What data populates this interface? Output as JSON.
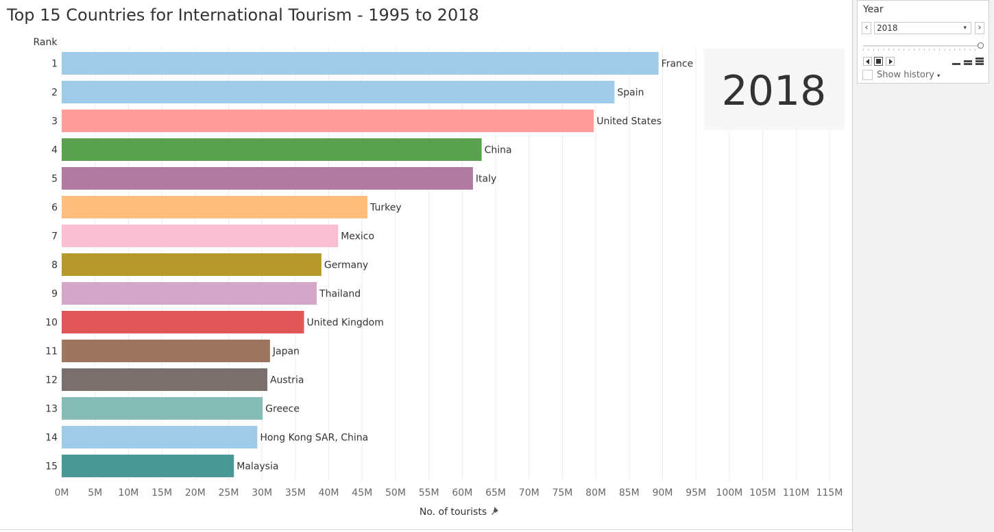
{
  "title": "Top 15 Countries for International Tourism - 1995 to 2018",
  "year_badge": "2018",
  "controls": {
    "year_label": "Year",
    "year_value": "2018",
    "prev_glyph": "‹",
    "next_glyph": "›",
    "dropdown_caret": "▾",
    "show_history_label": "Show history",
    "show_history_checked": false,
    "slider_position": 1.0,
    "icons": [
      "chevron-left-icon",
      "chevron-right-icon",
      "play-back-icon",
      "stop-icon",
      "play-forward-icon",
      "speed-slow-icon",
      "speed-medium-icon",
      "speed-fast-icon",
      "pin-icon"
    ]
  },
  "chart_data": {
    "type": "bar",
    "orientation": "horizontal",
    "title": "Top 15 Countries for International Tourism - 1995 to 2018",
    "xlabel": "No. of tourists",
    "ylabel": "Rank",
    "xlim": [
      0,
      115000000
    ],
    "x_ticks": [
      "0M",
      "5M",
      "10M",
      "15M",
      "20M",
      "25M",
      "30M",
      "35M",
      "40M",
      "45M",
      "50M",
      "55M",
      "60M",
      "65M",
      "70M",
      "75M",
      "80M",
      "85M",
      "90M",
      "95M",
      "100M",
      "105M",
      "110M",
      "115M"
    ],
    "grid": "vertical",
    "bars": [
      {
        "rank": "1",
        "label": "France",
        "value": 89400000,
        "color": "#a0cbe8"
      },
      {
        "rank": "2",
        "label": "Spain",
        "value": 82800000,
        "color": "#a0cbe8"
      },
      {
        "rank": "3",
        "label": "United States",
        "value": 79700000,
        "color": "#ff9d9a"
      },
      {
        "rank": "4",
        "label": "China",
        "value": 62900000,
        "color": "#59a14f"
      },
      {
        "rank": "5",
        "label": "Italy",
        "value": 61600000,
        "color": "#b07aa1"
      },
      {
        "rank": "6",
        "label": "Turkey",
        "value": 45800000,
        "color": "#ffbe7d"
      },
      {
        "rank": "7",
        "label": "Mexico",
        "value": 41400000,
        "color": "#fabfd2"
      },
      {
        "rank": "8",
        "label": "Germany",
        "value": 38900000,
        "color": "#b6992d"
      },
      {
        "rank": "9",
        "label": "Thailand",
        "value": 38200000,
        "color": "#d4a6c8"
      },
      {
        "rank": "10",
        "label": "United Kingdom",
        "value": 36300000,
        "color": "#e15759"
      },
      {
        "rank": "11",
        "label": "Japan",
        "value": 31200000,
        "color": "#9d7660"
      },
      {
        "rank": "12",
        "label": "Austria",
        "value": 30800000,
        "color": "#79706e"
      },
      {
        "rank": "13",
        "label": "Greece",
        "value": 30100000,
        "color": "#86bcb6"
      },
      {
        "rank": "14",
        "label": "Hong Kong SAR, China",
        "value": 29300000,
        "color": "#a0cbe8"
      },
      {
        "rank": "15",
        "label": "Malaysia",
        "value": 25800000,
        "color": "#499894"
      }
    ]
  }
}
